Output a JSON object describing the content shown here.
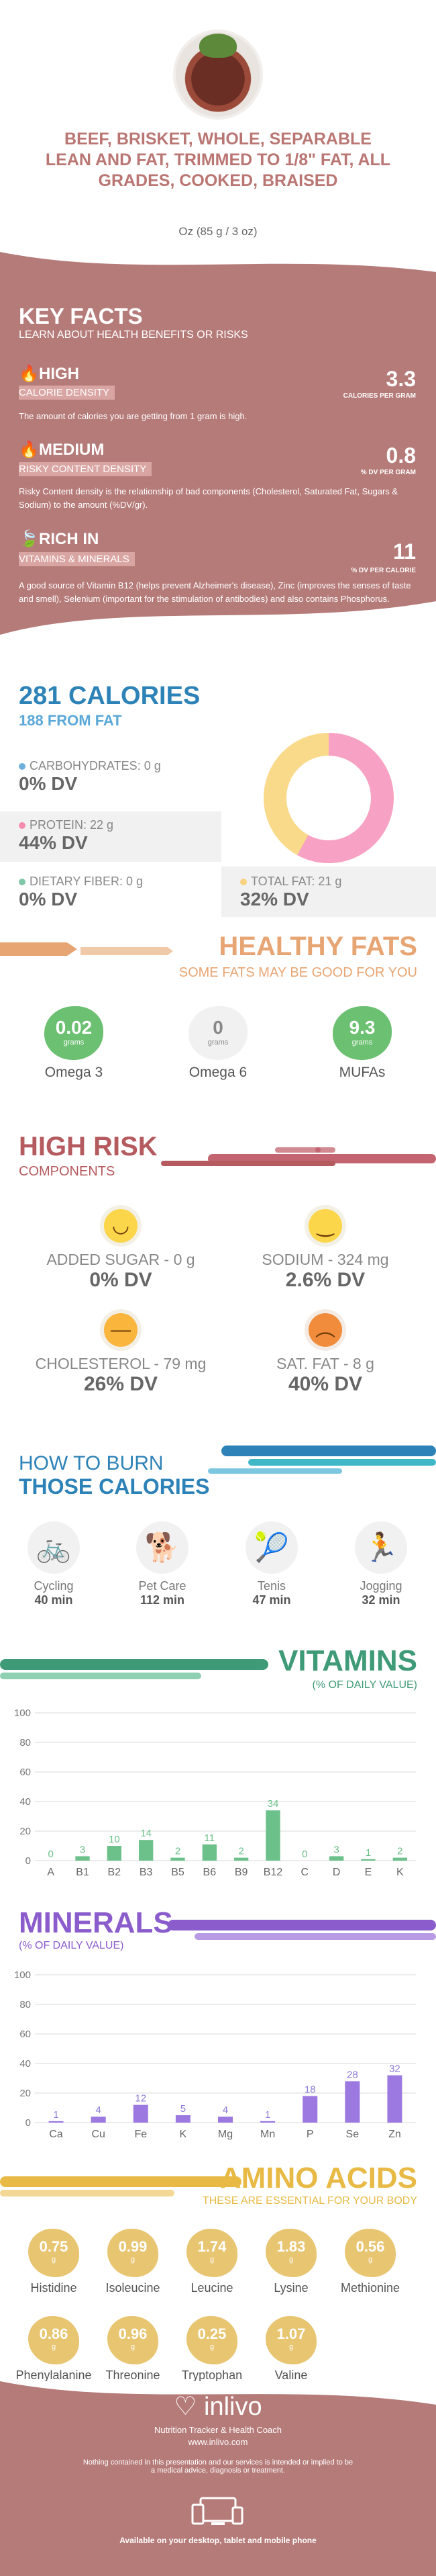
{
  "header": {
    "title": "BEEF, BRISKET, WHOLE, SEPARABLE LEAN AND FAT, TRIMMED TO 1/8\" FAT, ALL GRADES, COOKED, BRAISED",
    "serving": "Oz (85 g / 3 oz)"
  },
  "key_facts": {
    "heading": "KEY FACTS",
    "subheading": "LEARN ABOUT HEALTH BENEFITS OR RISKS",
    "items": [
      {
        "level": "HIGH",
        "label": "CALORIE DENSITY",
        "value": "3.3",
        "unit": "CALORIES PER GRAM",
        "desc": "The amount of calories you are getting from 1 gram is high."
      },
      {
        "level": "MEDIUM",
        "label": "RISKY CONTENT DENSITY",
        "value": "0.8",
        "unit": "% DV PER GRAM",
        "desc": "Risky Content density is the relationship of bad components (Cholesterol, Saturated Fat, Sugars & Sodium) to the amount (%DV/gr)."
      },
      {
        "level": "RICH  IN",
        "label": "VITAMINS & MINERALS",
        "value": "11",
        "unit": "% DV PER CALORIE",
        "desc": "A good source of Vitamin B12 (helps prevent Alzheimer's disease), Zinc (improves the senses of taste and smell), Selenium (important for the stimulation of antibodies) and also contains Phosphorus."
      }
    ]
  },
  "calories": {
    "heading": "281 CALORIES",
    "from_fat": "188 FROM FAT",
    "macros": [
      {
        "label": "CARBOHYDRATES: 0 g",
        "dv": "0% DV",
        "color": "#6fb0dc"
      },
      {
        "label": "PROTEIN: 22 g",
        "dv": "44% DV",
        "color": "#f58bb0"
      },
      {
        "label": "DIETARY FIBER: 0 g",
        "dv": "0% DV",
        "color": "#7fc7a8"
      },
      {
        "label": "TOTAL FAT: 21 g",
        "dv": "32% DV",
        "color": "#f8d27e"
      }
    ],
    "donut": {
      "protein_color": "#f7a1c4",
      "fat_color": "#f9d98a",
      "protein_share": 0.58
    }
  },
  "healthy_fats": {
    "heading": "HEALTHY FATS",
    "subheading": "SOME FATS MAY BE GOOD FOR YOU",
    "items": [
      {
        "value": "0.02",
        "unit": "grams",
        "name": "Omega 3",
        "color": "#6cc071"
      },
      {
        "value": "0",
        "unit": "grams",
        "name": "Omega 6",
        "color": "#f1f1f1"
      },
      {
        "value": "9.3",
        "unit": "grams",
        "name": "MUFAs",
        "color": "#6cc071"
      }
    ]
  },
  "high_risk": {
    "heading": "HIGH RISK",
    "subheading": "COMPONENTS",
    "items": [
      {
        "label": "ADDED SUGAR - 0 g",
        "dv": "0% DV",
        "face": "happy"
      },
      {
        "label": "SODIUM - 324 mg",
        "dv": "2.6% DV",
        "face": "smile"
      },
      {
        "label": "CHOLESTEROL - 79 mg",
        "dv": "26% DV",
        "face": "neutral"
      },
      {
        "label": "SAT. FAT - 8 g",
        "dv": "40% DV",
        "face": "sad"
      }
    ]
  },
  "burn": {
    "heading_1": "HOW TO BURN",
    "heading_2": "THOSE CALORIES",
    "activities": [
      {
        "name": "Cycling",
        "time": "40 min",
        "icon": "bicycle-icon"
      },
      {
        "name": "Pet Care",
        "time": "112 min",
        "icon": "dog-walk-icon"
      },
      {
        "name": "Tenis",
        "time": "47 min",
        "icon": "tennis-icon"
      },
      {
        "name": "Jogging",
        "time": "32 min",
        "icon": "running-icon"
      }
    ]
  },
  "chart_data": [
    {
      "type": "bar",
      "title": "VITAMINS",
      "subtitle": "(% OF DAILY VALUE)",
      "categories": [
        "A",
        "B1",
        "B2",
        "B3",
        "B5",
        "B6",
        "B9",
        "B12",
        "C",
        "D",
        "E",
        "K"
      ],
      "values": [
        0,
        3,
        10,
        14,
        2,
        11,
        2,
        34,
        0,
        3,
        1,
        2
      ],
      "ylim": [
        0,
        100
      ],
      "yticks": [
        0,
        20,
        40,
        60,
        80,
        100
      ],
      "color": "#6cc08a",
      "label_color": "#6cc08a",
      "grid": true
    },
    {
      "type": "bar",
      "title": "MINERALS",
      "subtitle": "(% OF DAILY VALUE)",
      "categories": [
        "Ca",
        "Cu",
        "Fe",
        "K",
        "Mg",
        "Mn",
        "P",
        "Se",
        "Zn"
      ],
      "values": [
        1,
        4,
        12,
        5,
        4,
        1,
        18,
        28,
        32
      ],
      "ylim": [
        0,
        100
      ],
      "yticks": [
        0,
        20,
        40,
        60,
        80,
        100
      ],
      "color": "#9b79e0",
      "label_color": "#8c7ad8",
      "grid": true
    }
  ],
  "amino": {
    "heading": "AMINO ACIDS",
    "subheading": "THESE ARE ESSENTIAL FOR YOUR BODY",
    "items": [
      {
        "value": "0.75",
        "name": "Histidine"
      },
      {
        "value": "0.99",
        "name": "Isoleucine"
      },
      {
        "value": "1.74",
        "name": "Leucine"
      },
      {
        "value": "1.83",
        "name": "Lysine"
      },
      {
        "value": "0.56",
        "name": "Methionine"
      },
      {
        "value": "0.86",
        "name": "Phenylalanine"
      },
      {
        "value": "0.96",
        "name": "Threonine"
      },
      {
        "value": "0.25",
        "name": "Tryptophan"
      },
      {
        "value": "1.07",
        "name": "Valine"
      }
    ],
    "unit": "g"
  },
  "footer": {
    "brand": "inlivo",
    "tagline": "Nutrition Tracker & Health Coach",
    "url": "www.inlivo.com",
    "disclaimer": "Nothing contained in this presentation and our services is intended or implied to be a medical advice, diagnosis or treatment.",
    "devices": "Available on your desktop, tablet and mobile phone"
  }
}
